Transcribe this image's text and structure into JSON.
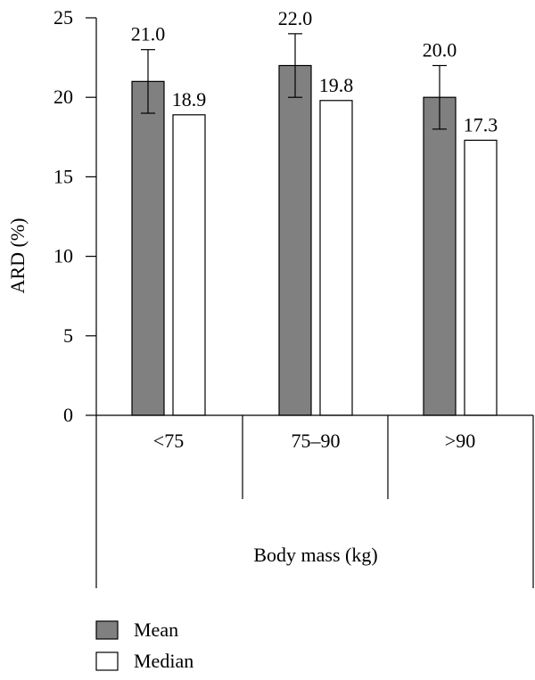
{
  "chart_data": {
    "type": "bar",
    "categories": [
      "<75",
      "75–90",
      ">90"
    ],
    "series": [
      {
        "name": "Mean",
        "values": [
          21.0,
          22.0,
          20.0
        ],
        "errors": [
          2.0,
          2.0,
          2.0
        ],
        "color": "#808080"
      },
      {
        "name": "Median",
        "values": [
          18.9,
          19.8,
          17.3
        ],
        "color": "#ffffff"
      }
    ],
    "value_labels": [
      [
        "21.0",
        "22.0",
        "20.0"
      ],
      [
        "18.9",
        "19.8",
        "17.3"
      ]
    ],
    "xlabel": "Body mass (kg)",
    "ylabel": "ARD (%)",
    "ylim": [
      0,
      25
    ],
    "yticks": [
      0,
      5,
      10,
      15,
      20,
      25
    ],
    "ytick_labels": [
      "0",
      "5",
      "10",
      "15",
      "20",
      "25"
    ],
    "grid": false,
    "legend_position": "bottom-left"
  }
}
